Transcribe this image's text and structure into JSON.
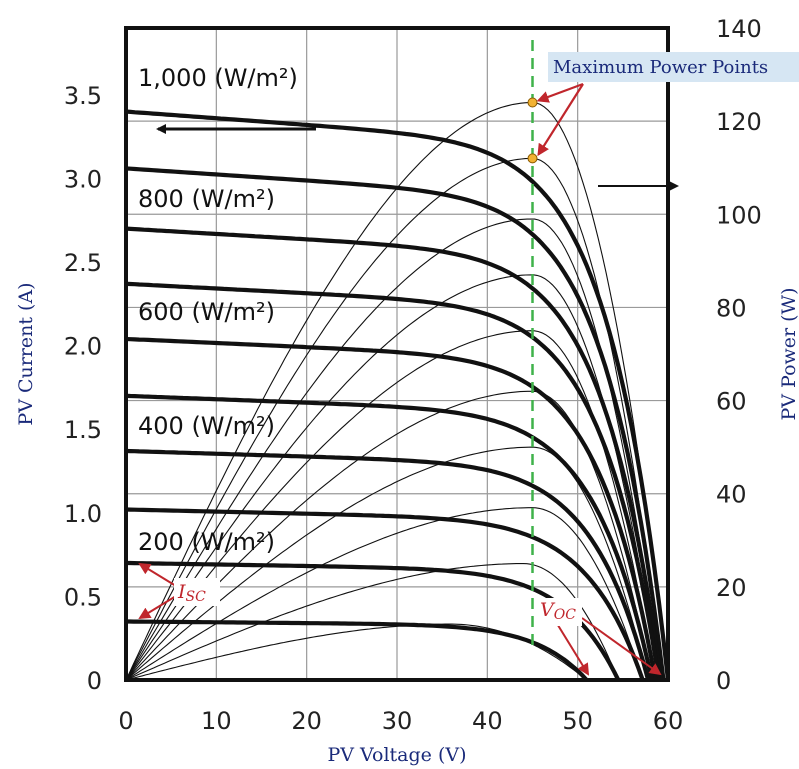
{
  "chart_data": {
    "type": "line",
    "xlabel": "PV Voltage (V)",
    "ylabel_left": "PV Current (A)",
    "ylabel_right": "PV Power (W)",
    "xlim": [
      0,
      60
    ],
    "ylim_left": [
      0,
      3.5
    ],
    "ylim_right": [
      0,
      140
    ],
    "x_ticks": [
      "0",
      "10",
      "20",
      "30",
      "40",
      "50",
      "60"
    ],
    "y_left_ticks": [
      "0",
      "0.5",
      "1.0",
      "1.5",
      "2.0",
      "2.5",
      "3.0",
      "3.5"
    ],
    "y_right_ticks": [
      "0",
      "20",
      "40",
      "60",
      "80",
      "100",
      "120",
      "140"
    ],
    "grid": true,
    "mpp_voltage": 45,
    "irradiance_labels": [
      "1,000 (W/m²)",
      "800 (W/m²)",
      "600 (W/m²)",
      "400 (W/m²)",
      "200 (W/m²)"
    ],
    "annotations": {
      "mpp": "Maximum Power Points",
      "isc": "I",
      "isc_sub": "SC",
      "voc": "V",
      "voc_sub": "OC"
    },
    "iv_curves": [
      {
        "isc": 3.4,
        "voc": 60
      },
      {
        "isc": 3.06,
        "voc": 59.5
      },
      {
        "isc": 2.7,
        "voc": 59.2
      },
      {
        "isc": 2.37,
        "voc": 59
      },
      {
        "isc": 2.04,
        "voc": 58.6
      },
      {
        "isc": 1.7,
        "voc": 58.2
      },
      {
        "isc": 1.37,
        "voc": 57.8
      },
      {
        "isc": 1.02,
        "voc": 57.2
      },
      {
        "isc": 0.7,
        "voc": 54.5
      },
      {
        "isc": 0.35,
        "voc": 51
      }
    ],
    "pv_curves": [
      {
        "pmax": 124,
        "vmp": 45,
        "voc": 60
      },
      {
        "pmax": 112,
        "vmp": 45,
        "voc": 59.5
      },
      {
        "pmax": 99,
        "vmp": 45,
        "voc": 59.2
      },
      {
        "pmax": 87,
        "vmp": 45,
        "voc": 59
      },
      {
        "pmax": 75,
        "vmp": 45,
        "voc": 58.6
      },
      {
        "pmax": 62,
        "vmp": 45,
        "voc": 58.2
      },
      {
        "pmax": 50,
        "vmp": 45,
        "voc": 57.8
      },
      {
        "pmax": 37,
        "vmp": 45,
        "voc": 57.2
      },
      {
        "pmax": 25,
        "vmp": 44,
        "voc": 54.5
      },
      {
        "pmax": 12,
        "vmp": 36,
        "voc": 51
      }
    ]
  },
  "colors": {
    "frame": "#111111",
    "grid": "#9a9a9a",
    "mpp_line": "#3fb24a",
    "mpp_marker": "#f2b233",
    "annotation_red": "#c0262c",
    "axis_title": "#1a2a7a",
    "label_box": "#d6e6f3"
  }
}
